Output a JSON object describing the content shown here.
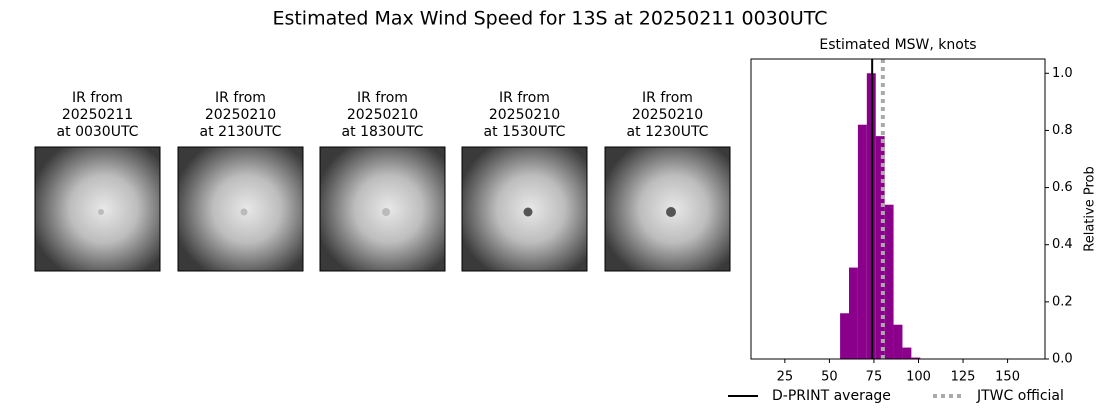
{
  "title": "Estimated Max Wind Speed for 13S at 20250211 0030UTC",
  "panels": [
    {
      "lines": [
        "IR from",
        "20250211",
        "at 0030UTC"
      ]
    },
    {
      "lines": [
        "IR from",
        "20250210",
        "at 2130UTC"
      ]
    },
    {
      "lines": [
        "IR from",
        "20250210",
        "at 1830UTC"
      ]
    },
    {
      "lines": [
        "IR from",
        "20250210",
        "at 1530UTC"
      ]
    },
    {
      "lines": [
        "IR from",
        "20250210",
        "at 1230UTC"
      ]
    }
  ],
  "chart_data": {
    "type": "histogram",
    "title": "Estimated MSW, knots",
    "bins": [
      56,
      61,
      66,
      71,
      76,
      81,
      86,
      91,
      96,
      101
    ],
    "values": [
      0.16,
      0.32,
      0.82,
      1.0,
      0.78,
      0.54,
      0.12,
      0.04,
      0.005
    ],
    "color": "#8b008b",
    "xlim": [
      6,
      171
    ],
    "xticks": [
      25,
      50,
      75,
      100,
      125,
      150
    ],
    "ylim": [
      0,
      1.05
    ],
    "yticks": [
      {
        "value": 0,
        "label": "0.0"
      },
      0.2,
      0.4,
      0.6,
      0.8,
      {
        "value": 1,
        "label": "1.0"
      }
    ],
    "ylabel": "Relative Prob",
    "yaxis_side": "right",
    "lines": [
      {
        "name": "D-PRINT average",
        "value": 74,
        "color": "#000000",
        "style": "solid"
      },
      {
        "name": "JTWC official",
        "value": 80,
        "color": "#aaaaaa",
        "style": "dotted"
      }
    ]
  }
}
